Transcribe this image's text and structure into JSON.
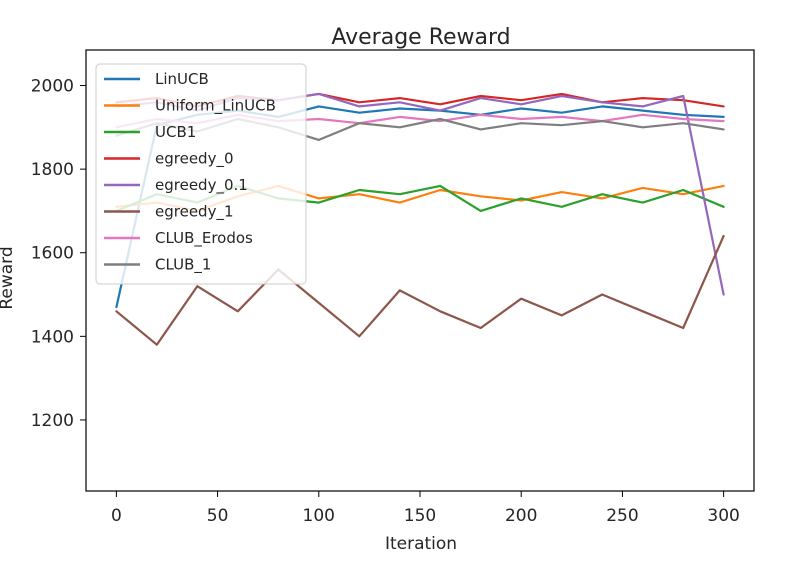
{
  "chart_data": {
    "type": "line",
    "title": "Average Reward",
    "xlabel": "Iteration",
    "ylabel": "Reward",
    "xlim": [
      -15,
      315
    ],
    "ylim": [
      1030,
      2085
    ],
    "xticks": [
      0,
      50,
      100,
      150,
      200,
      250,
      300
    ],
    "yticks": [
      1200,
      1400,
      1600,
      1800,
      2000
    ],
    "grid": false,
    "legend_position": "top-left",
    "series": [
      {
        "name": "LinUCB",
        "color": "#1f77b4",
        "values_x": [
          0,
          20,
          40,
          60,
          80,
          100,
          120,
          140,
          160,
          180,
          200,
          220,
          240,
          260,
          280,
          300
        ],
        "values_y": [
          1470,
          1905,
          1930,
          1940,
          1925,
          1950,
          1935,
          1945,
          1940,
          1930,
          1945,
          1935,
          1950,
          1940,
          1930,
          1925
        ]
      },
      {
        "name": "Uniform_LinUCB",
        "color": "#ff7f0e",
        "values_x": [
          0,
          20,
          40,
          60,
          80,
          100,
          120,
          140,
          160,
          180,
          200,
          220,
          240,
          260,
          280,
          300
        ],
        "values_y": [
          1710,
          1720,
          1700,
          1735,
          1760,
          1730,
          1740,
          1720,
          1750,
          1735,
          1725,
          1745,
          1730,
          1755,
          1740,
          1760
        ]
      },
      {
        "name": "UCB1",
        "color": "#2ca02c",
        "values_x": [
          0,
          20,
          40,
          60,
          80,
          100,
          120,
          140,
          160,
          180,
          200,
          220,
          240,
          260,
          280,
          300
        ],
        "values_y": [
          1700,
          1740,
          1720,
          1760,
          1730,
          1720,
          1750,
          1740,
          1760,
          1700,
          1730,
          1710,
          1740,
          1720,
          1750,
          1710
        ]
      },
      {
        "name": "egreedy_0",
        "color": "#d62728",
        "values_x": [
          0,
          20,
          40,
          60,
          80,
          100,
          120,
          140,
          160,
          180,
          200,
          220,
          240,
          260,
          280,
          300
        ],
        "values_y": [
          1960,
          1970,
          1950,
          1975,
          1965,
          1980,
          1960,
          1970,
          1955,
          1975,
          1965,
          1980,
          1960,
          1970,
          1965,
          1950
        ]
      },
      {
        "name": "egreedy_0.1",
        "color": "#9467bd",
        "values_x": [
          0,
          20,
          40,
          60,
          80,
          100,
          120,
          140,
          160,
          180,
          200,
          220,
          240,
          260,
          280,
          300
        ],
        "values_y": [
          1950,
          1960,
          1940,
          1970,
          1965,
          1980,
          1950,
          1960,
          1940,
          1970,
          1955,
          1975,
          1960,
          1950,
          1975,
          1500
        ]
      },
      {
        "name": "egreedy_1",
        "color": "#8c564b",
        "values_x": [
          0,
          20,
          40,
          60,
          80,
          100,
          120,
          140,
          160,
          180,
          200,
          220,
          240,
          260,
          280,
          300
        ],
        "values_y": [
          1460,
          1380,
          1520,
          1460,
          1560,
          1480,
          1400,
          1510,
          1460,
          1420,
          1490,
          1450,
          1500,
          1460,
          1420,
          1640
        ]
      },
      {
        "name": "CLUB_Erodos",
        "color": "#e377c2",
        "values_x": [
          0,
          20,
          40,
          60,
          80,
          100,
          120,
          140,
          160,
          180,
          200,
          220,
          240,
          260,
          280,
          300
        ],
        "values_y": [
          1900,
          1920,
          1910,
          1930,
          1915,
          1920,
          1910,
          1925,
          1915,
          1930,
          1920,
          1925,
          1915,
          1930,
          1920,
          1915
        ]
      },
      {
        "name": "CLUB_1",
        "color": "#7f7f7f",
        "values_x": [
          0,
          20,
          40,
          60,
          80,
          100,
          120,
          140,
          160,
          180,
          200,
          220,
          240,
          260,
          280,
          300
        ],
        "values_y": [
          1880,
          1910,
          1890,
          1920,
          1900,
          1870,
          1910,
          1900,
          1920,
          1895,
          1910,
          1905,
          1915,
          1900,
          1910,
          1895
        ]
      }
    ]
  }
}
